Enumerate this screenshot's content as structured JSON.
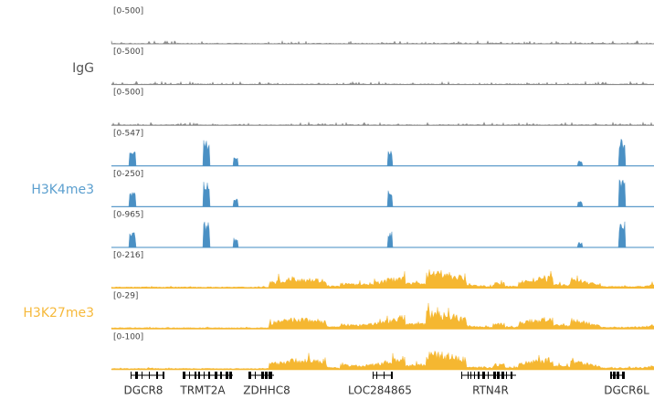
{
  "groups": [
    {
      "label": "IgG",
      "tracks": [
        {
          "range": "[0-500]"
        },
        {
          "range": "[0-500]"
        },
        {
          "range": "[0-500]"
        }
      ]
    },
    {
      "label": "H3K4me3",
      "tracks": [
        {
          "range": "[0-547]"
        },
        {
          "range": "[0-250]"
        },
        {
          "range": "[0-965]"
        }
      ]
    },
    {
      "label": "H3K27me3",
      "tracks": [
        {
          "range": "[0-216]"
        },
        {
          "range": "[0-29]"
        },
        {
          "range": "[0-100]"
        }
      ]
    }
  ],
  "genes": [
    {
      "label": "DGCR8"
    },
    {
      "label": "TRMT2A"
    },
    {
      "label": "ZDHHC8"
    },
    {
      "label": "LOC284865"
    },
    {
      "label": "RTN4R"
    },
    {
      "label": "DGCR6L"
    }
  ]
}
